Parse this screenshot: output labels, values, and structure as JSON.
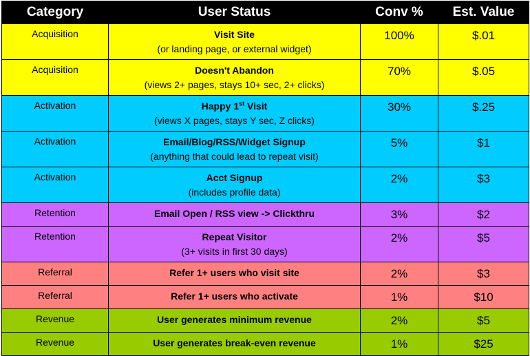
{
  "headers": {
    "category": "Category",
    "status": "User Status",
    "conv": "Conv %",
    "value": "Est. Value"
  },
  "colors": {
    "header": "#000000",
    "acquisition": "#ffff00",
    "activation": "#00ccff",
    "retention": "#cc66ff",
    "referral": "#ff8080",
    "revenue": "#99cc00"
  },
  "rows": [
    {
      "category": "Acquisition",
      "status": "Visit Site",
      "sub": "(or landing page, or external widget)",
      "conv": "100%",
      "value": "$.01"
    },
    {
      "category": "Acquisition",
      "status": "Doesn't Abandon",
      "sub": "(views 2+ pages, stays 10+ sec, 2+ clicks)",
      "conv": "70%",
      "value": "$.05"
    },
    {
      "category": "Activation",
      "status_pre": "Happy 1",
      "status_sup": "st",
      "status_post": " Visit",
      "sub": "(views X pages, stays Y sec, Z clicks)",
      "conv": "30%",
      "value": "$.25"
    },
    {
      "category": "Activation",
      "status": "Email/Blog/RSS/Widget Signup",
      "sub": "(anything that could lead to repeat visit)",
      "conv": "5%",
      "value": "$1"
    },
    {
      "category": "Activation",
      "status": "Acct Signup",
      "sub": "(includes profile data)",
      "conv": "2%",
      "value": "$3"
    },
    {
      "category": "Retention",
      "status": "Email Open / RSS view -> Clickthru",
      "conv": "3%",
      "value": "$2"
    },
    {
      "category": "Retention",
      "status": "Repeat Visitor",
      "sub": "(3+ visits in first 30 days)",
      "conv": "2%",
      "value": "$5"
    },
    {
      "category": "Referral",
      "status": "Refer 1+ users who visit site",
      "conv": "2%",
      "value": "$3"
    },
    {
      "category": "Referral",
      "status": "Refer 1+ users who activate",
      "conv": "1%",
      "value": "$10"
    },
    {
      "category": "Revenue",
      "status": "User generates minimum revenue",
      "conv": "2%",
      "value": "$5"
    },
    {
      "category": "Revenue",
      "status": "User generates break-even revenue",
      "conv": "1%",
      "value": "$25"
    }
  ]
}
